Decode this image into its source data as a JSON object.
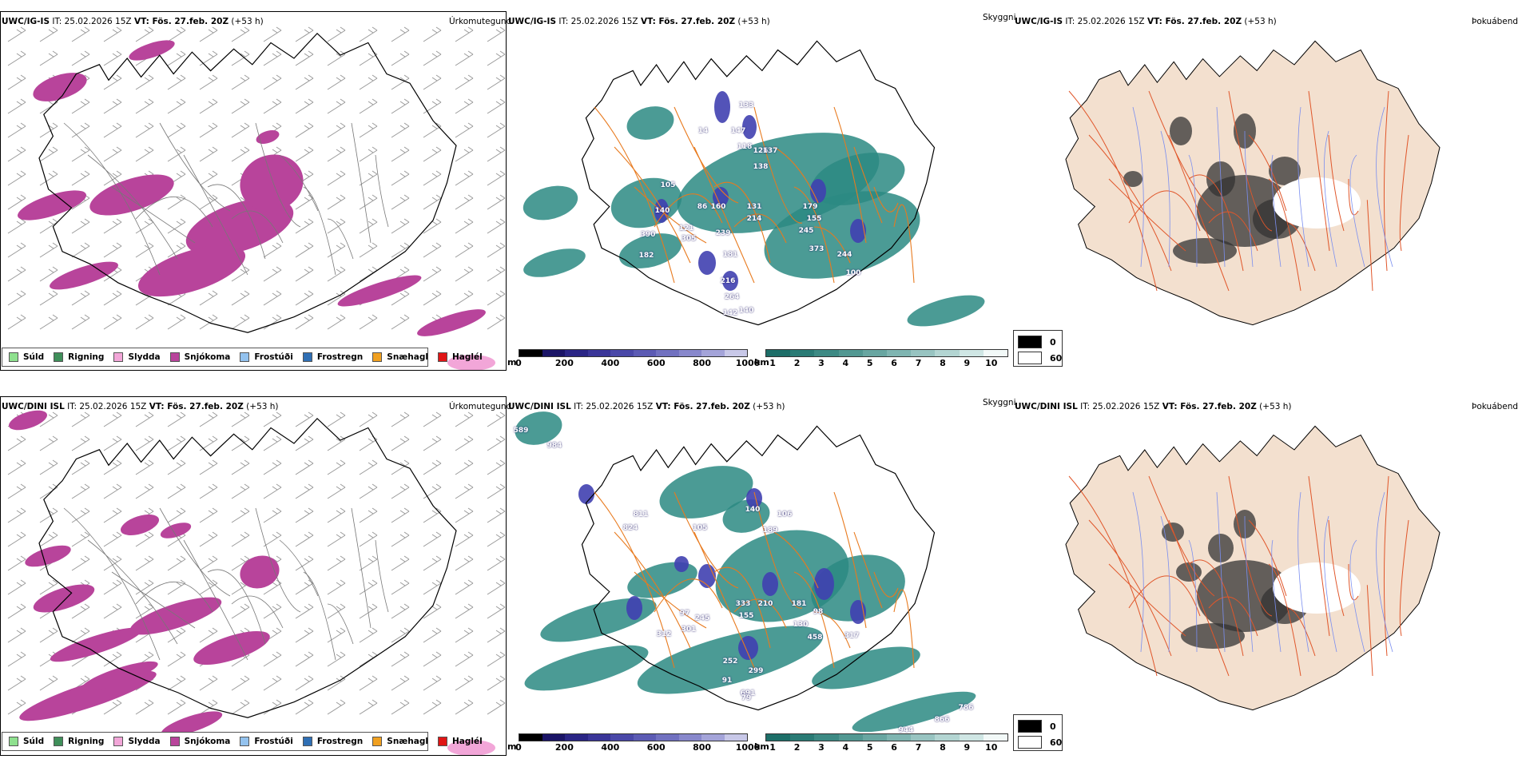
{
  "rows": [
    {
      "model": "UWC/IG-IS",
      "it": "IT: 25.02.2026 15Z",
      "vt": "VT: Fös. 27.feb. 20Z",
      "lead": "(+53 h)",
      "snow_counts": [
        "133",
        "147",
        "118",
        "126",
        "137",
        "138",
        "105",
        "140",
        "86",
        "160",
        "131",
        "179",
        "155",
        "245",
        "214",
        "121",
        "305",
        "239",
        "390",
        "182",
        "181",
        "373",
        "244",
        "100",
        "216",
        "264",
        "142",
        "140"
      ],
      "snow_counts_partial": "14"
    },
    {
      "model": "UWC/DINI ISL",
      "it": "IT: 25.02.2026 15Z",
      "vt": "VT: Fös. 27.feb. 20Z",
      "lead": "(+53 h)",
      "snow_counts": [
        "589",
        "984",
        "811",
        "824",
        "105",
        "140",
        "189",
        "106",
        "333",
        "210",
        "181",
        "98",
        "155",
        "97",
        "245",
        "301",
        "312",
        "130",
        "458",
        "317",
        "252",
        "299",
        "91",
        "691",
        "786",
        "866",
        "944"
      ],
      "snow_counts_partial": "79"
    }
  ],
  "precip_type": {
    "title": "Úrkomutegund",
    "legend": [
      {
        "label": "Súld",
        "color": "#8ee08e"
      },
      {
        "label": "Rigning",
        "color": "#3f8f5a"
      },
      {
        "label": "Slydda",
        "color": "#f2a6d8"
      },
      {
        "label": "Snjókoma",
        "color": "#b8449b"
      },
      {
        "label": "Frostúði",
        "color": "#93c2ee"
      },
      {
        "label": "Frostregn",
        "color": "#2f6fb4"
      },
      {
        "label": "Snæhagl",
        "color": "#f0a020"
      },
      {
        "label": "Haglél",
        "color": "#e01515"
      }
    ]
  },
  "visibility": {
    "title": "Skyggni",
    "unit_m": "m",
    "unit_km": "km",
    "m_ticks": [
      "0",
      "200",
      "400",
      "600",
      "800",
      "1000"
    ],
    "km_ticks": [
      "1",
      "2",
      "3",
      "4",
      "5",
      "6",
      "7",
      "8",
      "9",
      "10"
    ],
    "m_colors": [
      "#000000",
      "#1a1466",
      "#2a2585",
      "#3a3598",
      "#4a48a8",
      "#5c5bb4",
      "#7171c0",
      "#8888cc",
      "#a4a4d9",
      "#c8c8e8"
    ],
    "km_colors": [
      "#1d6e68",
      "#2a7b75",
      "#3d8a84",
      "#529892",
      "#68a6a1",
      "#7fb5b1",
      "#98c4c1",
      "#b3d5d2",
      "#cfe6e4",
      "#f2f9f8"
    ],
    "snow_color": "#4040b0",
    "fog_color": "#2b8a82"
  },
  "fog": {
    "title": "Þokuábendi",
    "legend": [
      {
        "label": "0",
        "color": "#000000"
      },
      {
        "label": "60",
        "color": "#ffffff"
      }
    ],
    "land_color": "#f3e0cf",
    "road_color": "#e0562a",
    "river_color": "#7a8ef0"
  },
  "colors": {
    "coast": "#000000",
    "roads_orange": "#e87a1e",
    "barb": "#999999"
  }
}
